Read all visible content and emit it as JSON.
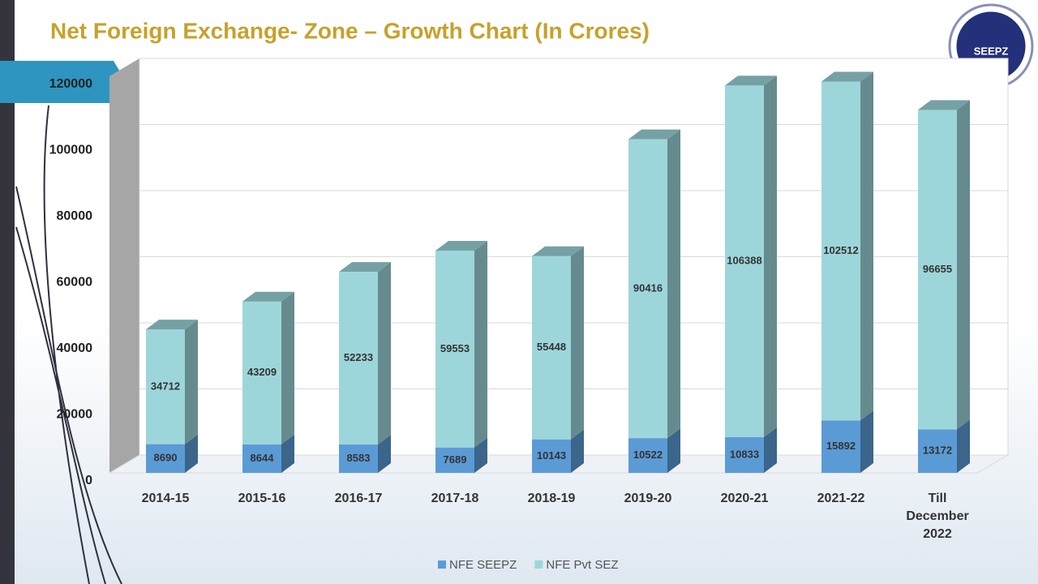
{
  "logo_text": "SEEPZ",
  "chart_data": {
    "type": "stacked_bar_3d",
    "title": "Net Foreign Exchange- Zone – Growth Chart (In Crores)",
    "categories": [
      "2014-15",
      "2015-16",
      "2016-17",
      "2017-18",
      "2018-19",
      "2019-20",
      "2020-21",
      "2021-22",
      "Till December 2022"
    ],
    "series": [
      {
        "name": "NFE SEEPZ",
        "color": "#5b9bd5",
        "values": [
          8690,
          8644,
          8583,
          7689,
          10143,
          10522,
          10833,
          15892,
          13172
        ]
      },
      {
        "name": "NFE Pvt SEZ",
        "color": "#9dd6da",
        "values": [
          34712,
          43209,
          52233,
          59553,
          55448,
          90416,
          106388,
          102512,
          96655
        ]
      }
    ],
    "ylim": [
      0,
      120000
    ],
    "yticks": [
      0,
      20000,
      40000,
      60000,
      80000,
      100000,
      120000
    ],
    "grid": true,
    "legend": "bottom"
  }
}
